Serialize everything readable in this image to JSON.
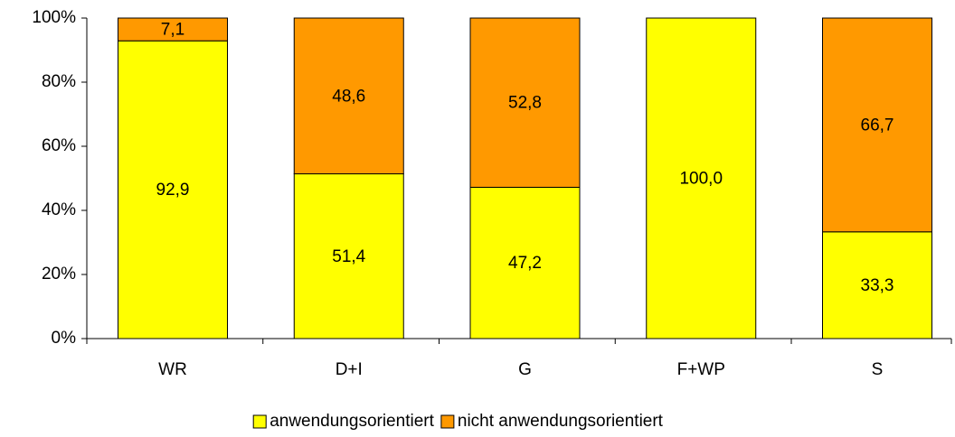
{
  "chart_data": {
    "type": "stacked_bar",
    "categories": [
      "WR",
      "D+I",
      "G",
      "F+WP",
      "S"
    ],
    "series": [
      {
        "name": "anwendungsorientiert",
        "color": "#ffff00",
        "values": [
          92.9,
          51.4,
          47.2,
          100.0,
          33.3
        ],
        "value_labels": [
          "92,9",
          "51,4",
          "47,2",
          "100,0",
          "33,3"
        ]
      },
      {
        "name": "nicht anwendungsorientiert",
        "color": "#ff9900",
        "values": [
          7.1,
          48.6,
          52.8,
          null,
          66.7
        ],
        "value_labels": [
          "7,1",
          "48,6",
          "52,8",
          null,
          "66,7"
        ]
      }
    ],
    "ylim": [
      0,
      100
    ],
    "yticks": [
      {
        "value": 0,
        "label": "0%"
      },
      {
        "value": 20,
        "label": "20%"
      },
      {
        "value": 40,
        "label": "40%"
      },
      {
        "value": 60,
        "label": "60%"
      },
      {
        "value": 80,
        "label": "80%"
      },
      {
        "value": 100,
        "label": "100%"
      }
    ],
    "legend": "bottom"
  }
}
